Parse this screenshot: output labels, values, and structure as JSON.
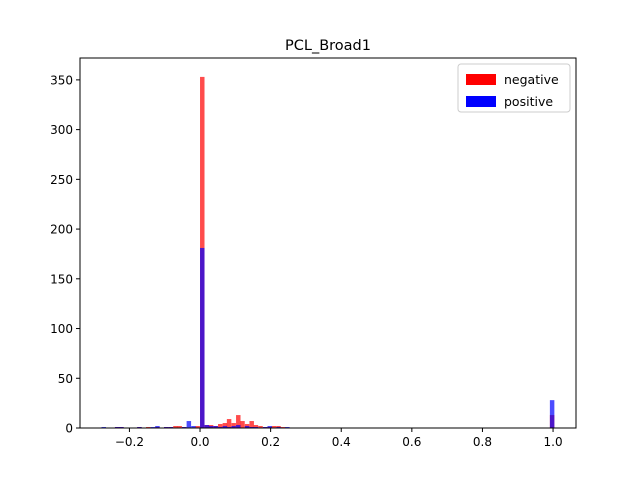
{
  "chart_data": {
    "type": "bar",
    "title": "PCL_Broad1",
    "xlabel": "",
    "ylabel": "",
    "xlim": [
      -0.34,
      1.065
    ],
    "ylim": [
      0,
      372
    ],
    "xticks": [
      -0.2,
      0.0,
      0.2,
      0.4,
      0.6,
      0.8,
      1.0
    ],
    "xtick_labels": [
      "−0.2",
      "0.0",
      "0.2",
      "0.4",
      "0.6",
      "0.8",
      "1.0"
    ],
    "yticks": [
      0,
      50,
      100,
      150,
      200,
      250,
      300,
      350
    ],
    "ytick_labels": [
      "0",
      "50",
      "100",
      "150",
      "200",
      "250",
      "300",
      "350"
    ],
    "grid": false,
    "legend_position": "top-right",
    "bin_width": 0.0127,
    "series": [
      {
        "name": "negative",
        "color": "#ff0000",
        "bins": [
          [
            -0.241,
            1
          ],
          [
            -0.229,
            1
          ],
          [
            -0.178,
            1
          ],
          [
            -0.153,
            1
          ],
          [
            -0.127,
            1
          ],
          [
            -0.102,
            1
          ],
          [
            -0.089,
            1
          ],
          [
            -0.076,
            2
          ],
          [
            -0.064,
            2
          ],
          [
            -0.051,
            1
          ],
          [
            -0.013,
            2
          ],
          [
            0.0,
            353
          ],
          [
            0.013,
            3
          ],
          [
            0.025,
            3
          ],
          [
            0.038,
            2
          ],
          [
            0.051,
            4
          ],
          [
            0.064,
            5
          ],
          [
            0.076,
            9
          ],
          [
            0.089,
            5
          ],
          [
            0.102,
            13
          ],
          [
            0.114,
            7
          ],
          [
            0.127,
            4
          ],
          [
            0.14,
            7
          ],
          [
            0.152,
            3
          ],
          [
            0.165,
            2
          ],
          [
            0.178,
            1
          ],
          [
            0.191,
            1
          ],
          [
            0.203,
            2
          ],
          [
            0.216,
            2
          ],
          [
            0.229,
            1
          ],
          [
            0.991,
            13
          ]
        ]
      },
      {
        "name": "positive",
        "color": "#0000ff",
        "bins": [
          [
            -0.279,
            1
          ],
          [
            -0.241,
            1
          ],
          [
            -0.229,
            1
          ],
          [
            -0.178,
            1
          ],
          [
            -0.14,
            1
          ],
          [
            -0.127,
            2
          ],
          [
            -0.102,
            1
          ],
          [
            -0.089,
            1
          ],
          [
            -0.051,
            1
          ],
          [
            -0.038,
            7
          ],
          [
            -0.025,
            2
          ],
          [
            0.0,
            181
          ],
          [
            0.013,
            3
          ],
          [
            0.025,
            2
          ],
          [
            0.038,
            2
          ],
          [
            0.051,
            1
          ],
          [
            0.064,
            2
          ],
          [
            0.076,
            1
          ],
          [
            0.089,
            2
          ],
          [
            0.102,
            3
          ],
          [
            0.127,
            2
          ],
          [
            0.14,
            1
          ],
          [
            0.152,
            1
          ],
          [
            0.178,
            1
          ],
          [
            0.191,
            2
          ],
          [
            0.216,
            1
          ],
          [
            0.241,
            1
          ],
          [
            0.991,
            28
          ]
        ]
      }
    ]
  }
}
